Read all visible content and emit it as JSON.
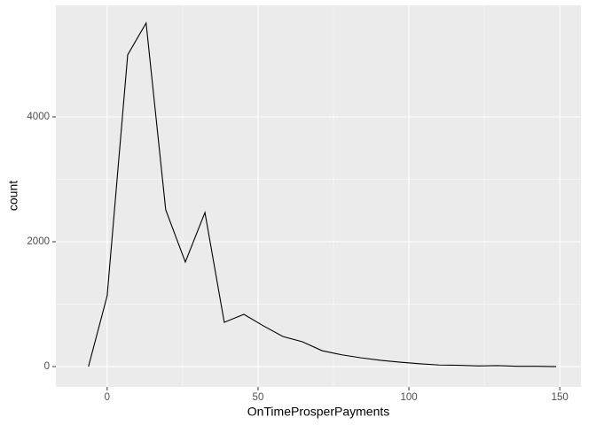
{
  "chart_data": {
    "type": "line",
    "x_label": "OnTimeProsperPayments",
    "y_label": "count",
    "x": [
      -6.2,
      0,
      6.8,
      12.9,
      19.4,
      25.9,
      32.4,
      38.8,
      45.3,
      51.8,
      58.2,
      64.7,
      71.2,
      77.6,
      84.1,
      90.6,
      97.1,
      103.5,
      110,
      116.5,
      123,
      129.4,
      135.9,
      142.4,
      148.8
    ],
    "series": [
      {
        "name": "count",
        "color": "#000000",
        "values": [
          0,
          1135,
          4993,
          5504,
          2511,
          1674,
          2468,
          709,
          837,
          652,
          482,
          397,
          255,
          190,
          140,
          100,
          70,
          45,
          25,
          20,
          10,
          15,
          5,
          5,
          0
        ]
      }
    ],
    "xlim": [
      -17,
      157
    ],
    "ylim": [
      -326,
      5787
    ],
    "xticks": [
      0,
      50,
      100,
      150
    ],
    "yticks": [
      0,
      2000,
      4000
    ],
    "grid": true
  }
}
